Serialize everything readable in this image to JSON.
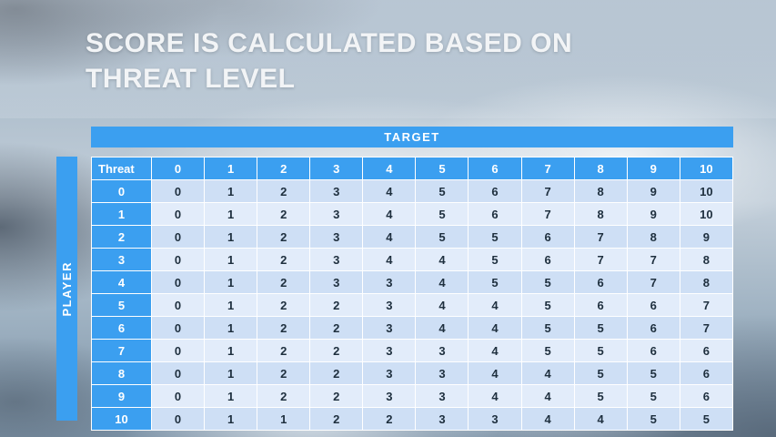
{
  "title": {
    "line1": "SCORE IS CALCULATED BASED ON",
    "line2": "THREAT LEVEL"
  },
  "chart_data": {
    "type": "table",
    "title": "SCORE IS CALCULATED BASED ON THREAT LEVEL",
    "x_axis_label": "TARGET",
    "y_axis_label": "PLAYER",
    "corner_header": "Threat",
    "column_headers": [
      "0",
      "1",
      "2",
      "3",
      "4",
      "5",
      "6",
      "7",
      "8",
      "9",
      "10"
    ],
    "row_headers": [
      "0",
      "1",
      "2",
      "3",
      "4",
      "5",
      "6",
      "7",
      "8",
      "9",
      "10"
    ],
    "rows": [
      [
        0,
        1,
        2,
        3,
        4,
        5,
        6,
        7,
        8,
        9,
        10
      ],
      [
        0,
        1,
        2,
        3,
        4,
        5,
        6,
        7,
        8,
        9,
        10
      ],
      [
        0,
        1,
        2,
        3,
        4,
        5,
        5,
        6,
        7,
        8,
        9
      ],
      [
        0,
        1,
        2,
        3,
        4,
        4,
        5,
        6,
        7,
        7,
        8
      ],
      [
        0,
        1,
        2,
        3,
        3,
        4,
        5,
        5,
        6,
        7,
        8
      ],
      [
        0,
        1,
        2,
        2,
        3,
        4,
        4,
        5,
        6,
        6,
        7
      ],
      [
        0,
        1,
        2,
        2,
        3,
        4,
        4,
        5,
        5,
        6,
        7
      ],
      [
        0,
        1,
        2,
        2,
        3,
        3,
        4,
        5,
        5,
        6,
        6
      ],
      [
        0,
        1,
        2,
        2,
        3,
        3,
        4,
        4,
        5,
        5,
        6
      ],
      [
        0,
        1,
        2,
        2,
        3,
        3,
        4,
        4,
        5,
        5,
        6
      ],
      [
        0,
        1,
        1,
        2,
        2,
        3,
        3,
        4,
        4,
        5,
        5
      ]
    ],
    "legend_position": "none",
    "grid": true
  },
  "colors": {
    "accent_blue": "#3B9FF0",
    "row_band_a": "#CEDFF5",
    "row_band_b": "#E2ECFA",
    "cell_text": "#1E2F3E",
    "title_text": "#F2F4F6",
    "header_text": "#FFFFFF"
  }
}
